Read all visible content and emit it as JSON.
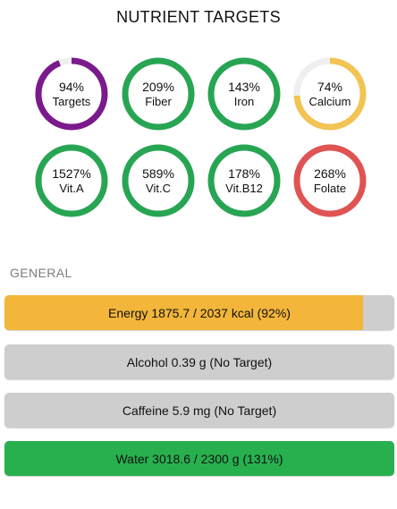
{
  "header": {
    "title": "NUTRIENT TARGETS"
  },
  "rings": [
    {
      "pct_label": "94%",
      "label": "Targets",
      "progress": 0.94,
      "color": "#7b1a8c",
      "track_color": "#efefef"
    },
    {
      "pct_label": "209%",
      "label": "Fiber",
      "progress": 1.0,
      "color": "#27a553",
      "track_color": "#efefef"
    },
    {
      "pct_label": "143%",
      "label": "Iron",
      "progress": 1.0,
      "color": "#27a553",
      "track_color": "#efefef"
    },
    {
      "pct_label": "74%",
      "label": "Calcium",
      "progress": 0.74,
      "color": "#f2c453",
      "track_color": "#efefef"
    },
    {
      "pct_label": "1527%",
      "label": "Vit.A",
      "progress": 1.0,
      "color": "#27a553",
      "track_color": "#efefef"
    },
    {
      "pct_label": "589%",
      "label": "Vit.C",
      "progress": 1.0,
      "color": "#27a553",
      "track_color": "#efefef"
    },
    {
      "pct_label": "178%",
      "label": "Vit.B12",
      "progress": 1.0,
      "color": "#27a553",
      "track_color": "#efefef"
    },
    {
      "pct_label": "268%",
      "label": "Folate",
      "progress": 1.0,
      "color": "#e05353",
      "track_color": "#efefef"
    }
  ],
  "general": {
    "header": "GENERAL",
    "bars": [
      {
        "text": "Energy 1875.7 / 2037 kcal (92%)",
        "fill": 0.92,
        "color": "#f3b63a"
      },
      {
        "text": "Alcohol 0.39 g (No Target)",
        "fill": 0,
        "color": "#cfcecf"
      },
      {
        "text": "Caffeine 5.9 mg (No Target)",
        "fill": 0,
        "color": "#cfcecf"
      },
      {
        "text": "Water 3018.6 / 2300 g (131%)",
        "fill": 1.0,
        "color": "#28b04f"
      }
    ]
  }
}
